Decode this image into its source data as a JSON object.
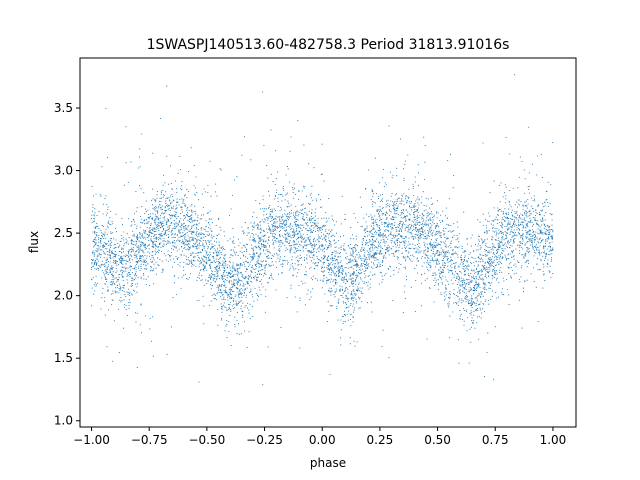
{
  "chart_data": {
    "type": "scatter",
    "title": "1SWASPJ140513.60-482758.3 Period 31813.91016s",
    "xlabel": "phase",
    "ylabel": "flux",
    "xlim": [
      -1.05,
      1.1
    ],
    "ylim": [
      0.95,
      3.9
    ],
    "xticks": [
      -1.0,
      -0.75,
      -0.5,
      -0.25,
      0.0,
      0.25,
      0.5,
      0.75,
      1.0
    ],
    "xtick_labels": [
      "−1.00",
      "−0.75",
      "−0.50",
      "−0.25",
      "0.00",
      "0.25",
      "0.50",
      "0.75",
      "1.00"
    ],
    "yticks": [
      1.0,
      1.5,
      2.0,
      2.5,
      3.0,
      3.5
    ],
    "ytick_labels": [
      "1.0",
      "1.5",
      "2.0",
      "2.5",
      "3.0",
      "3.5"
    ],
    "grid": false,
    "marker_color": "#1f77b4",
    "series": [
      {
        "phase": [
          -1.0,
          -0.95,
          -0.9,
          -0.85,
          -0.8,
          -0.75,
          -0.7,
          -0.65,
          -0.6,
          -0.55,
          -0.5,
          -0.45,
          -0.4,
          -0.35,
          -0.3,
          -0.25,
          -0.2,
          -0.15,
          -0.1,
          -0.05,
          0.0,
          0.05,
          0.1,
          0.15,
          0.2,
          0.25,
          0.3,
          0.35,
          0.4,
          0.45,
          0.5,
          0.55,
          0.6,
          0.65,
          0.7,
          0.75,
          0.8,
          0.85,
          0.9,
          0.95,
          1.0
        ],
        "flux_mean": [
          2.42,
          2.35,
          2.25,
          2.22,
          2.32,
          2.45,
          2.55,
          2.58,
          2.55,
          2.45,
          2.35,
          2.2,
          2.08,
          2.12,
          2.3,
          2.45,
          2.52,
          2.52,
          2.5,
          2.45,
          2.38,
          2.25,
          2.12,
          2.2,
          2.35,
          2.48,
          2.52,
          2.55,
          2.55,
          2.48,
          2.38,
          2.25,
          2.15,
          2.08,
          2.2,
          2.38,
          2.48,
          2.52,
          2.52,
          2.5,
          2.45
        ]
      }
    ]
  }
}
